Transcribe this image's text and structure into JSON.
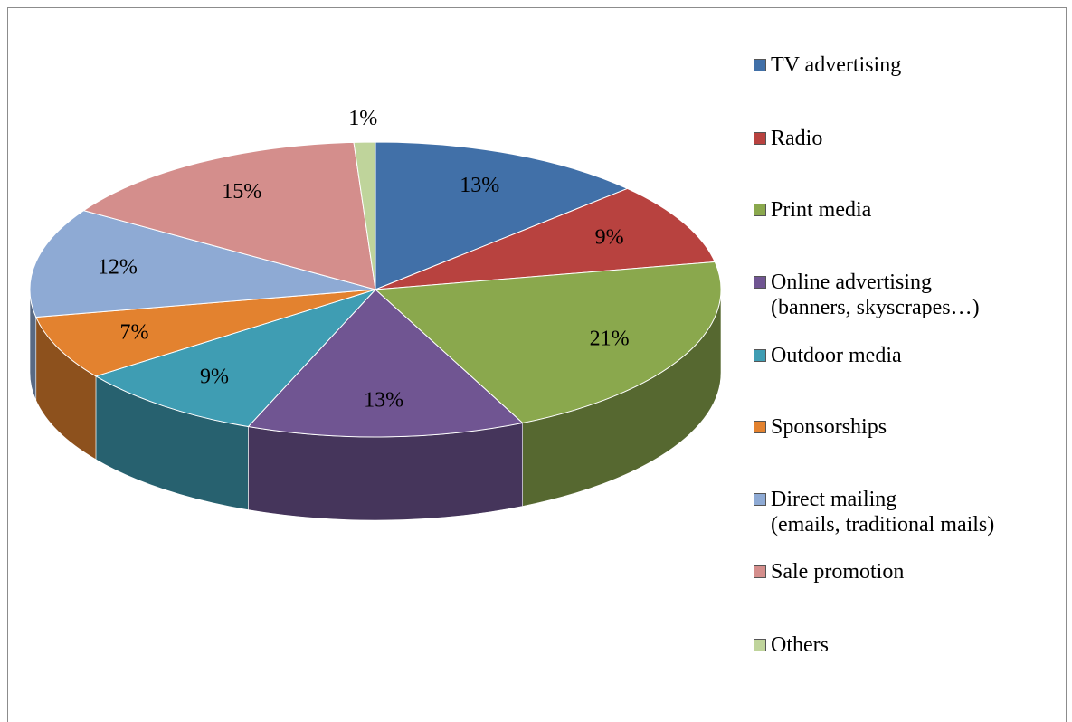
{
  "chart_data": {
    "type": "pie3d",
    "categories": [
      "TV advertising",
      "Radio",
      "Print media",
      "Online advertising\n(banners, skyscrapes…)",
      "Outdoor media",
      "Sponsorships",
      "Direct mailing\n(emails, traditional mails)",
      "Sale promotion",
      "Others"
    ],
    "values": [
      13,
      9,
      21,
      13,
      9,
      7,
      12,
      15,
      1
    ],
    "value_labels": [
      "13%",
      "9%",
      "21%",
      "13%",
      "9%",
      "7%",
      "12%",
      "15%",
      "1%"
    ],
    "colors": [
      "#4170a8",
      "#b8423f",
      "#8aa84d",
      "#705592",
      "#3f9db3",
      "#e3822f",
      "#8eaad4",
      "#d48e8c",
      "#bfd49b"
    ],
    "legend": "right"
  }
}
